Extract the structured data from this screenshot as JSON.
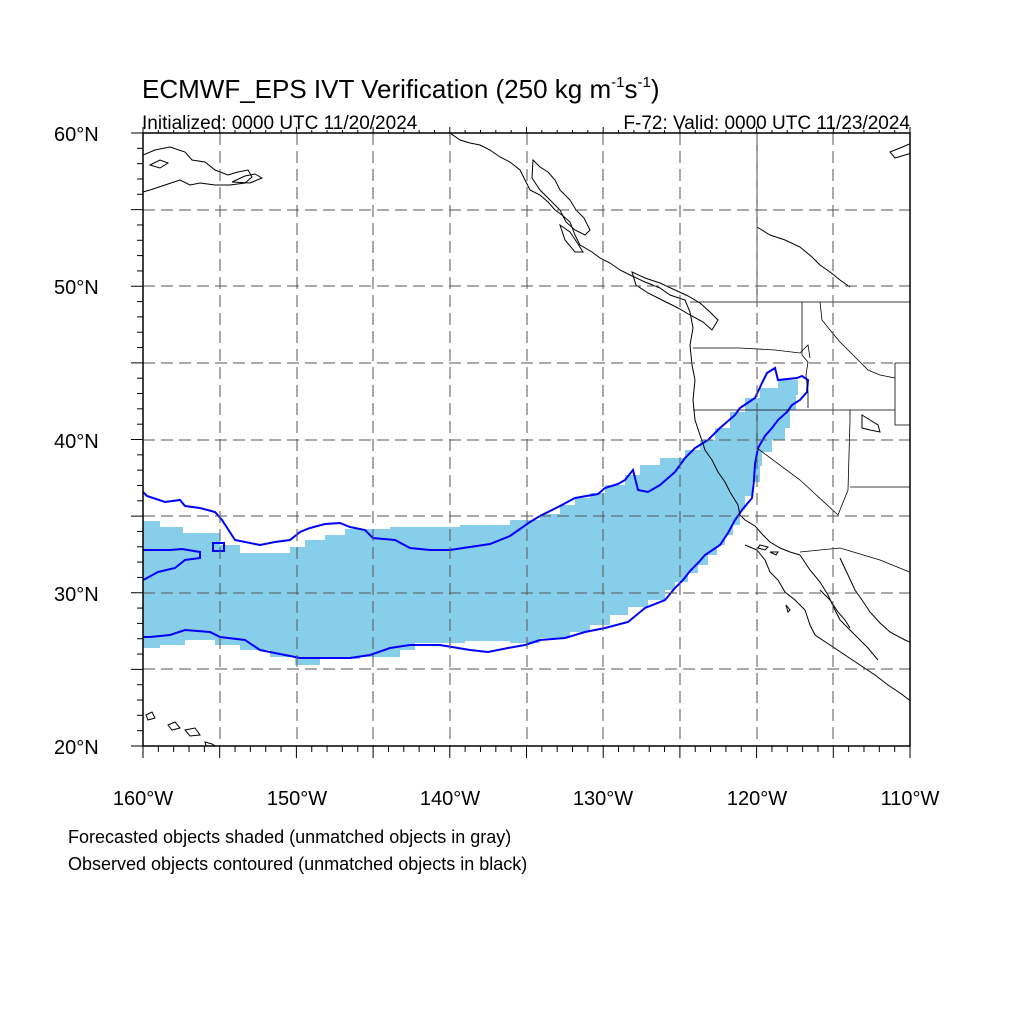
{
  "title": {
    "prefix": "ECMWF_EPS IVT Verification (250 kg m",
    "exp1": "-1",
    "mid": "s",
    "exp2": "-1",
    "suffix": ")"
  },
  "initialized": "Initialized: 0000 UTC 11/20/2024",
  "valid": "F-72: Valid: 0000 UTC 11/23/2024",
  "lat_labels": [
    "60°N",
    "50°N",
    "40°N",
    "30°N",
    "20°N"
  ],
  "lon_labels": [
    "160°W",
    "150°W",
    "140°W",
    "130°W",
    "120°W",
    "110°W"
  ],
  "notes": [
    "Forecasted objects shaded (unmatched objects in gray)",
    "Observed objects contoured (unmatched objects in black)"
  ],
  "colors": {
    "forecast_fill": "#87ceeb",
    "observed_contour": "#0000ff",
    "coast": "#000000",
    "grid": "#555555"
  },
  "map_extent": {
    "lon": [
      -160,
      -110
    ],
    "lat": [
      20,
      60
    ]
  },
  "gridlines": {
    "lon": [
      -155,
      -150,
      -145,
      -140,
      -135,
      -130,
      -125,
      -120,
      -115
    ],
    "lat": [
      25,
      30,
      35,
      40,
      45,
      50,
      55
    ]
  }
}
